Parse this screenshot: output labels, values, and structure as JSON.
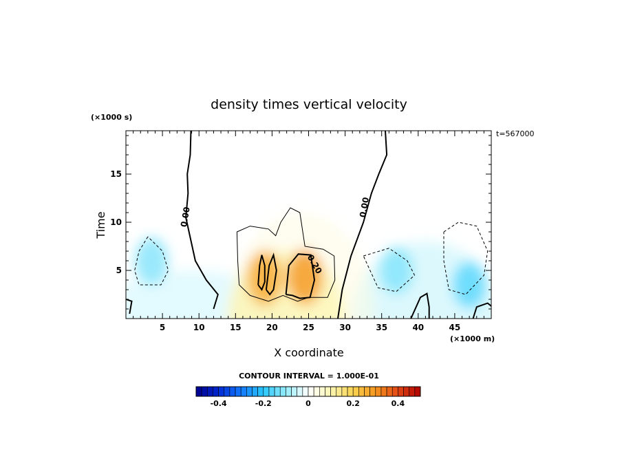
{
  "chart_data": {
    "type": "heatmap",
    "title": "density times vertical velocity",
    "xlabel": "X coordinate",
    "ylabel": "Time",
    "x_unit": "(×1000 m)",
    "y_unit": "(×1000 s)",
    "time_stamp": "t=567000",
    "xlim": [
      0,
      50
    ],
    "ylim": [
      0,
      19.5
    ],
    "xticks": [
      5,
      10,
      15,
      20,
      25,
      30,
      35,
      40,
      45
    ],
    "yticks": [
      5,
      10,
      15
    ],
    "contour_interval_text": "CONTOUR INTERVAL = 1.000E-01",
    "contour_labels": [
      {
        "text": "0.00",
        "x": 8.5,
        "y": 10.5
      },
      {
        "text": "0.00",
        "x": 33.0,
        "y": 11.5
      },
      {
        "text": "0.20",
        "x": 25.5,
        "y": 5.5
      }
    ],
    "colorbar": {
      "min": -0.5,
      "max": 0.5,
      "ticks": [
        -0.4,
        -0.2,
        0,
        0.2,
        0.4
      ],
      "tick_labels": [
        "-0.4",
        "-0.2",
        "0",
        "0.2",
        "0.4"
      ]
    },
    "features": [
      {
        "kind": "max",
        "x": 19.0,
        "y": 4.2,
        "value": 0.27
      },
      {
        "kind": "max",
        "x": 24.5,
        "y": 4.3,
        "value": 0.3
      },
      {
        "kind": "min",
        "x": 3.5,
        "y": 6.0,
        "value": -0.12
      },
      {
        "kind": "min",
        "x": 37.0,
        "y": 5.0,
        "value": -0.12
      },
      {
        "kind": "min",
        "x": 47.0,
        "y": 3.5,
        "value": -0.16
      }
    ]
  }
}
